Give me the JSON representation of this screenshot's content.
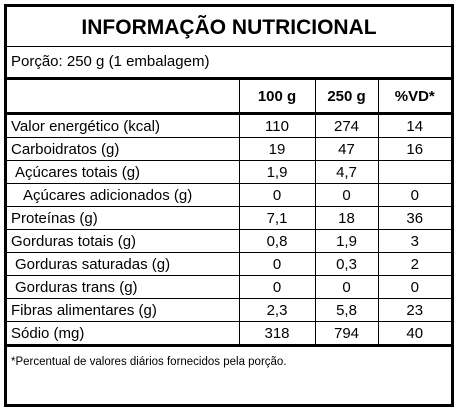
{
  "title": "INFORMAÇÃO NUTRICIONAL",
  "portion": "Porção: 250 g (1 embalagem)",
  "table": {
    "headers": [
      "100 g",
      "250 g",
      "%VD*"
    ],
    "rows": [
      [
        "Valor energético (kcal)",
        "110",
        "274",
        "14"
      ],
      [
        "Carboidratos (g)",
        "19",
        "47",
        "16"
      ],
      [
        "Açúcares totais (g)",
        "1,9",
        "4,7",
        null
      ],
      [
        "Açúcares adicionados (g)",
        "0",
        "0",
        "0"
      ],
      [
        "Proteínas (g)",
        "7,1",
        "18",
        "36"
      ],
      [
        "Gorduras totais (g)",
        "0,8",
        "1,9",
        "3"
      ],
      [
        "Gorduras saturadas (g)",
        "0",
        "0,3",
        "2"
      ],
      [
        "Gorduras trans (g)",
        "0",
        "0",
        "0"
      ],
      [
        "Fibras alimentares (g)",
        "2,3",
        "5,8",
        "23"
      ],
      [
        "Sódio (mg)",
        "318",
        "794",
        "40"
      ]
    ]
  },
  "footnote": "*Percentual de valores diários fornecidos pela porção."
}
